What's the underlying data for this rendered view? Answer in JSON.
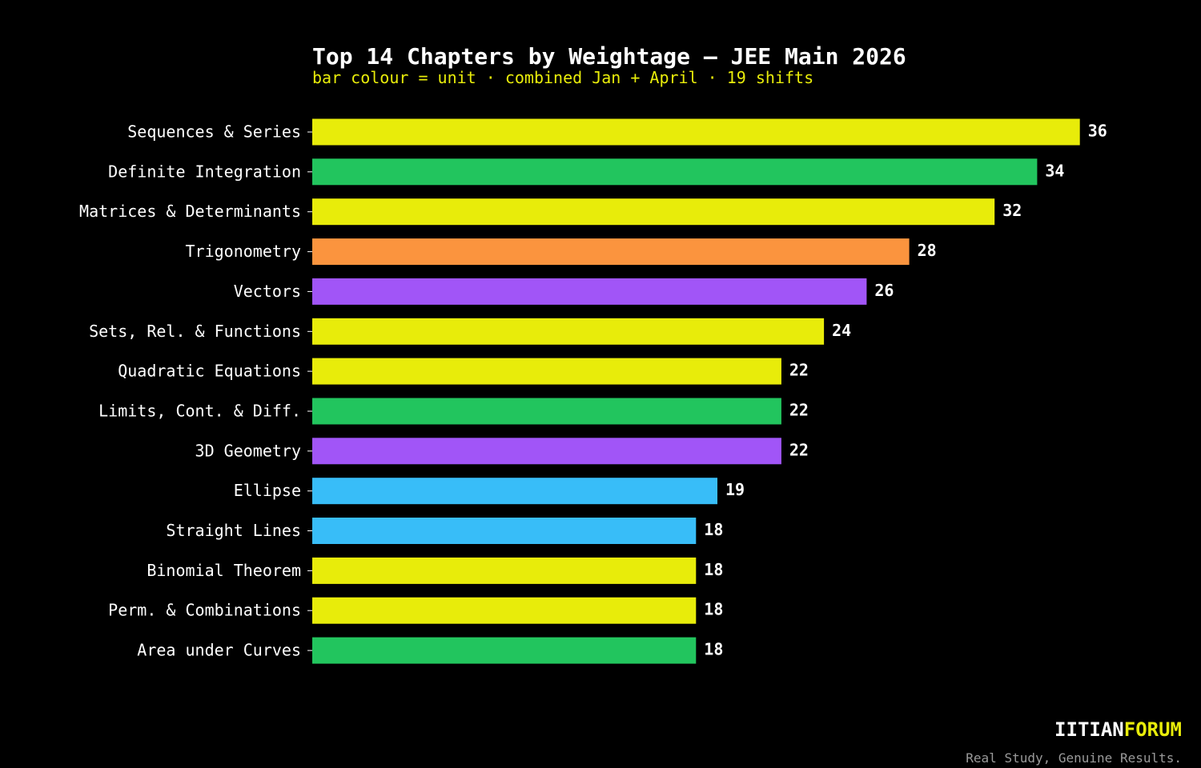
{
  "chart_data": {
    "type": "bar",
    "orientation": "horizontal",
    "title": "Top 14 Chapters by Weightage — JEE Main 2026",
    "subtitle": "bar colour = unit · combined Jan + April · 19 shifts",
    "categories": [
      "Sequences & Series",
      "Definite Integration",
      "Matrices & Determinants",
      "Trigonometry",
      "Vectors",
      "Sets, Rel. & Functions",
      "Quadratic Equations",
      "Limits, Cont. & Diff.",
      "3D Geometry",
      "Ellipse",
      "Straight Lines",
      "Binomial Theorem",
      "Perm. & Combinations",
      "Area under Curves"
    ],
    "values": [
      36,
      34,
      32,
      28,
      26,
      24,
      22,
      22,
      22,
      19,
      18,
      18,
      18,
      18
    ],
    "bar_colors": [
      "#e8ec0a",
      "#22c55e",
      "#e8ec0a",
      "#fb943e",
      "#a155f7",
      "#e8ec0a",
      "#e8ec0a",
      "#22c55e",
      "#a155f7",
      "#38bdf8",
      "#38bdf8",
      "#e8ec0a",
      "#e8ec0a",
      "#22c55e"
    ],
    "xlim": [
      0,
      36
    ],
    "grid": false,
    "legend": "none",
    "xlabel": "",
    "ylabel": ""
  },
  "branding": {
    "name_part_1": "IITIAN",
    "name_part_2": "FORUM",
    "tagline": "Real Study, Genuine Results."
  },
  "colors": {
    "background": "#000000",
    "accent": "#e8ec0a",
    "text": "#ffffff",
    "tagline": "#9a9a9a"
  }
}
